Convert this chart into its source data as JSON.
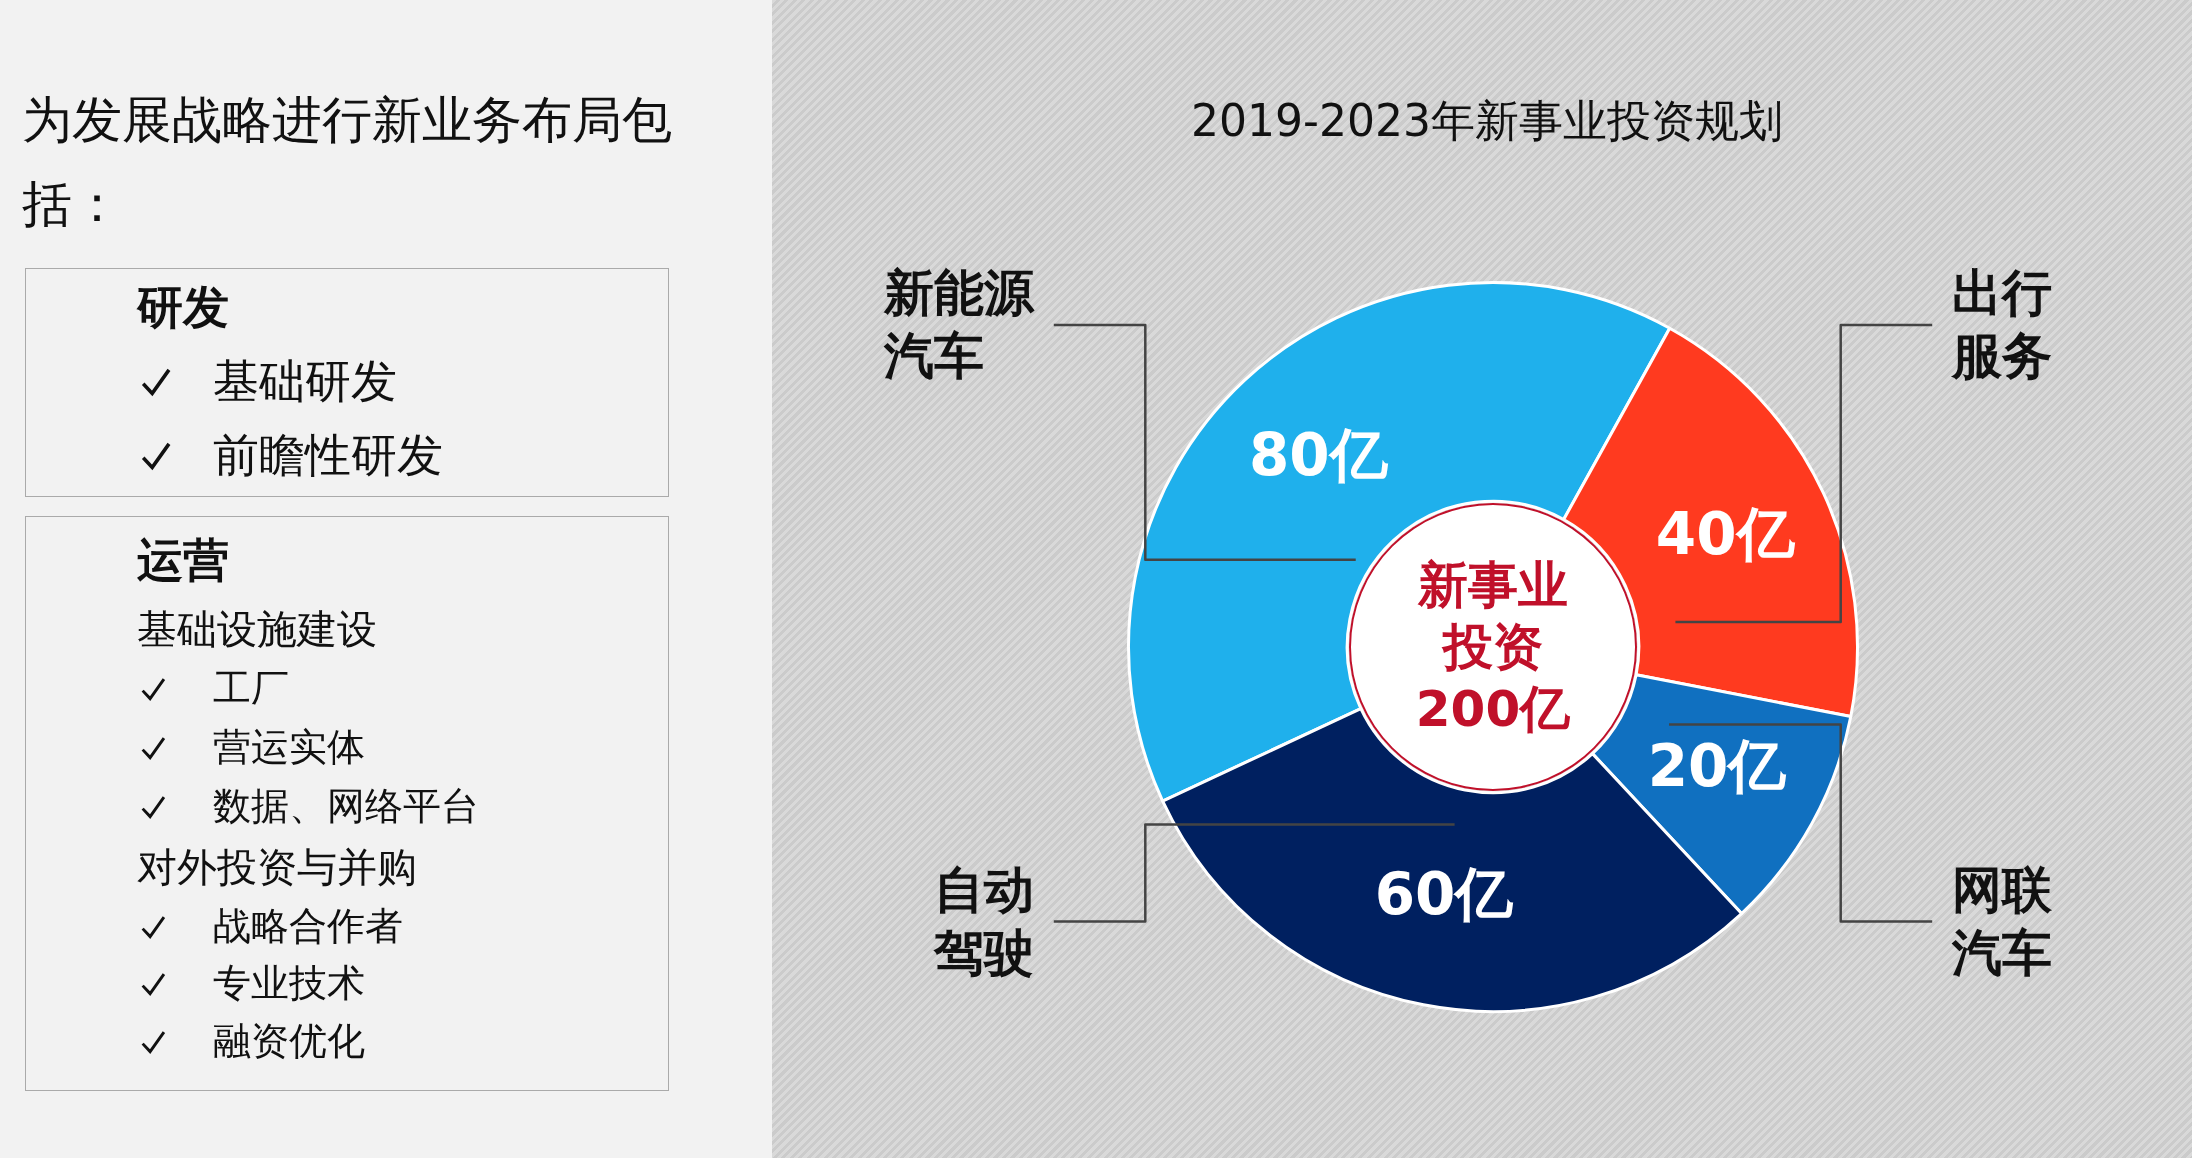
{
  "chart_data": [
    {
      "type": "other",
      "title": "为发展战略进行新业务布局包括：",
      "annotations": [
        "研发",
        "基础研发",
        "前瞻性研发",
        "运营",
        "基础设施建设",
        "工厂",
        "营运实体",
        "数据、网络平台",
        "对外投资与并购",
        "战略合作者",
        "专业技术",
        "融资优化"
      ]
    },
    {
      "type": "donut",
      "title": "2019-2023年新事业投资规划",
      "categories": [
        "新能源汽车",
        "出行服务",
        "网联汽车",
        "自动驾驶"
      ],
      "values": [
        80,
        40,
        20,
        60
      ],
      "colors": [
        "#1fb0ec",
        "#ff3a1f",
        "#1070c0",
        "#002060"
      ],
      "value_labels": [
        "80亿",
        "40亿",
        "20亿",
        "60亿"
      ],
      "annotations": [
        "新事业投资200亿"
      ]
    }
  ]
}
